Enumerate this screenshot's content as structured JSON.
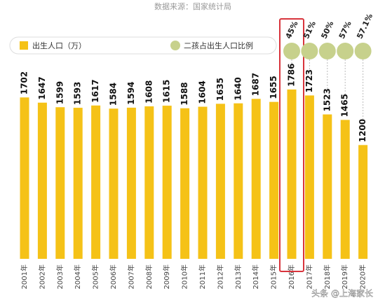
{
  "source": "数据来源：国家统计局",
  "watermark": "头条 @上海家长",
  "chart_data": {
    "type": "bar",
    "categories": [
      "2001年",
      "2002年",
      "2003年",
      "2004年",
      "2005年",
      "2006年",
      "2007年",
      "2008年",
      "2009年",
      "2010年",
      "2011年",
      "2012年",
      "2013年",
      "2014年",
      "2015年",
      "2016年",
      "2017年",
      "2018年",
      "2019年",
      "2020年"
    ],
    "series": [
      {
        "name": "出生人口（万）",
        "color": "#f5c217",
        "type": "bar",
        "values": [
          1702,
          1647,
          1599,
          1593,
          1617,
          1584,
          1594,
          1608,
          1615,
          1588,
          1604,
          1635,
          1640,
          1687,
          1655,
          1786,
          1723,
          1523,
          1465,
          1200
        ]
      },
      {
        "name": "二孩占出生人口比例",
        "color": "#c7d18c",
        "type": "circle",
        "values": [
          null,
          null,
          null,
          null,
          null,
          null,
          null,
          null,
          null,
          null,
          null,
          null,
          null,
          null,
          null,
          45,
          51,
          50,
          57,
          57.1
        ],
        "value_labels": [
          null,
          null,
          null,
          null,
          null,
          null,
          null,
          null,
          null,
          null,
          null,
          null,
          null,
          null,
          null,
          "45%",
          "51%",
          "50%",
          "57%",
          "57.1%"
        ]
      }
    ],
    "ylim": [
      0,
      1800
    ],
    "highlight": "2016年",
    "highlight_color": "#d8343c"
  }
}
